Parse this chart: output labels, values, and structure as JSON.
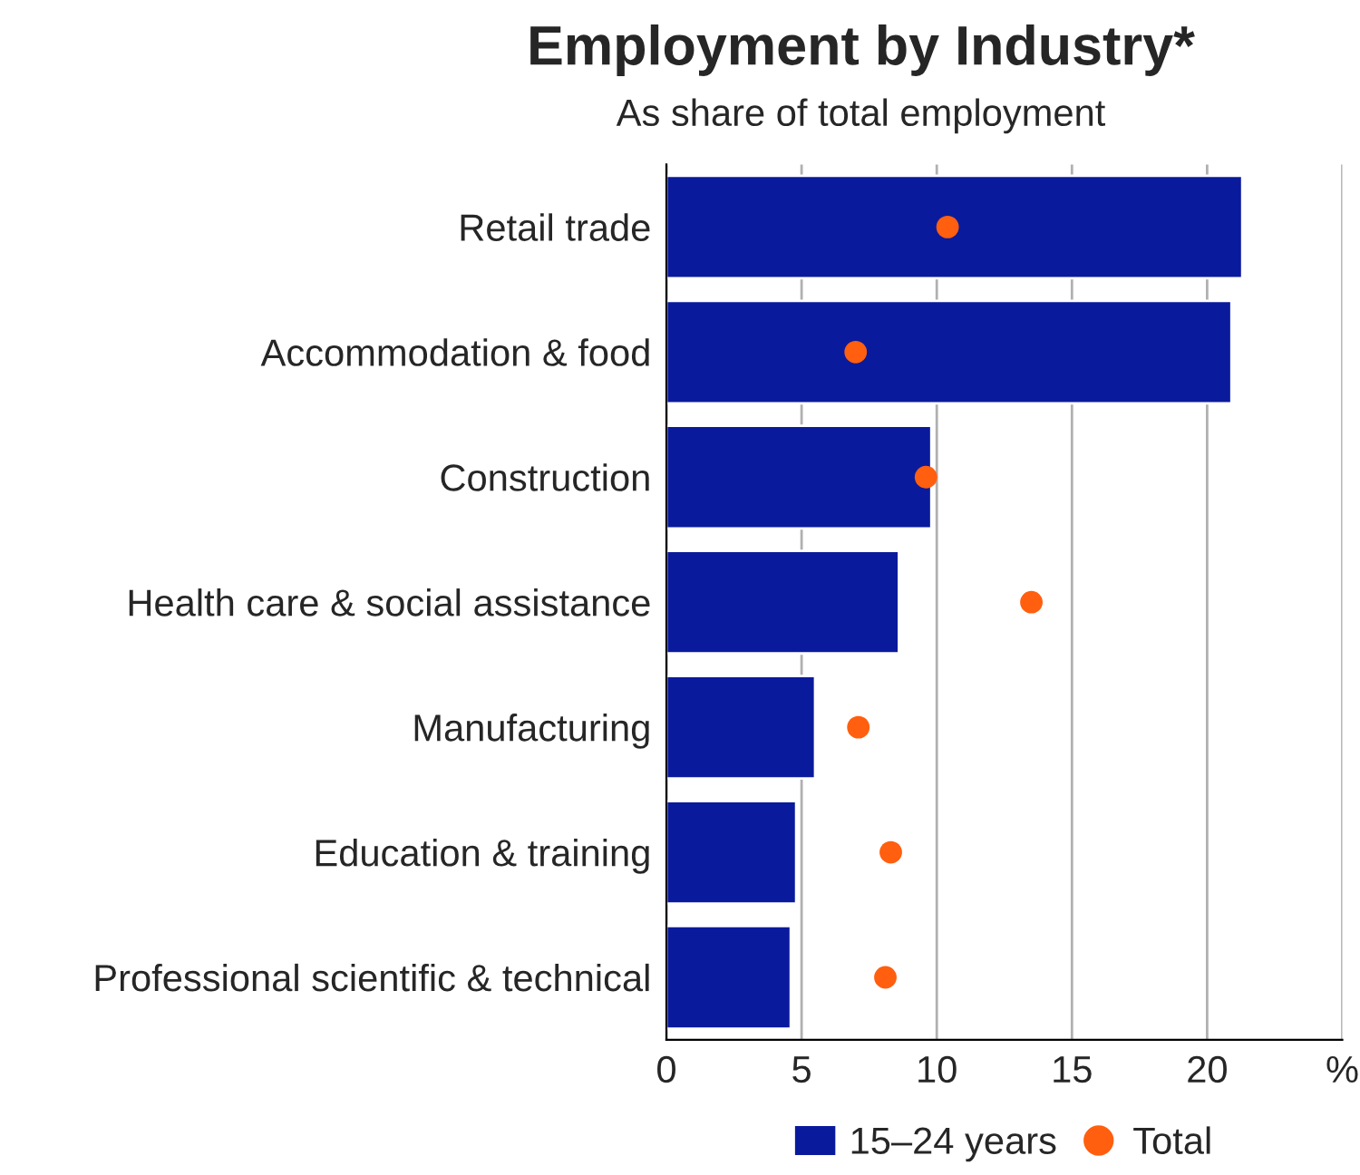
{
  "chart_data": {
    "type": "bar",
    "orientation": "horizontal",
    "title": "Employment by Industry*",
    "subtitle": "As share of total employment",
    "categories": [
      "Retail trade",
      "Accommodation & food",
      "Construction",
      "Health care & social assistance",
      "Manufacturing",
      "Education & training",
      "Professional scientific & technical"
    ],
    "series": [
      {
        "name": "15–24 years",
        "color": "#0a1a9c",
        "values": [
          21.3,
          20.9,
          9.8,
          8.6,
          5.5,
          4.8,
          4.6
        ]
      },
      {
        "name": "Total",
        "type": "scatter",
        "color": "#ff5f0f",
        "values": [
          10.4,
          7.0,
          9.6,
          13.5,
          7.1,
          8.3,
          8.1
        ]
      }
    ],
    "xlim": [
      0,
      25
    ],
    "xticks": [
      0,
      5,
      10,
      15,
      20,
      {
        "value": 25,
        "label": "%"
      }
    ],
    "grid": "x",
    "legend": "bottom",
    "marker": "circle"
  }
}
